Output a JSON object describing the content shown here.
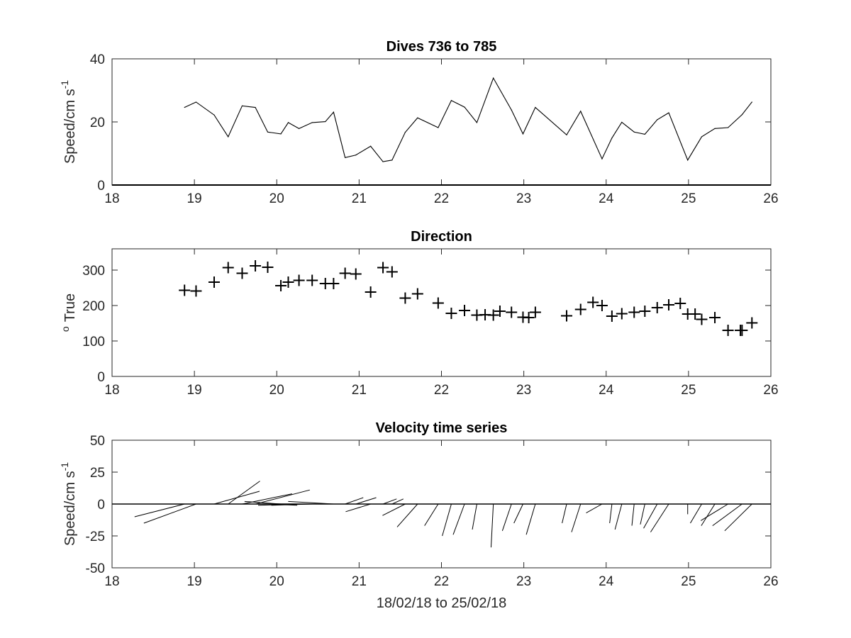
{
  "chart_data": [
    {
      "type": "line",
      "title": "Dives 736 to 785",
      "ylabel_main": "Speed/cm s",
      "ylabel_sup": "-1",
      "xlim": [
        18,
        26
      ],
      "ylim": [
        0,
        40
      ],
      "xticks": [
        "18",
        "19",
        "20",
        "21",
        "22",
        "23",
        "24",
        "25",
        "26"
      ],
      "yticks": [
        "0",
        "20",
        "40"
      ],
      "ytick_values": [
        0,
        20,
        40
      ],
      "color": "#000000",
      "x": [
        18.88,
        19.02,
        19.24,
        19.41,
        19.58,
        19.74,
        19.89,
        20.05,
        20.14,
        20.27,
        20.43,
        20.59,
        20.69,
        20.83,
        20.96,
        21.14,
        21.29,
        21.4,
        21.56,
        21.71,
        21.96,
        22.12,
        22.28,
        22.43,
        22.63,
        22.85,
        22.99,
        23.14,
        23.52,
        23.69,
        23.95,
        24.07,
        24.19,
        24.34,
        24.47,
        24.62,
        24.76,
        24.99,
        25.16,
        25.32,
        25.48,
        25.65,
        25.77
      ],
      "y": [
        24.6,
        26.3,
        22.2,
        15.3,
        25.1,
        24.6,
        16.8,
        16.2,
        19.8,
        17.9,
        19.8,
        20.1,
        23.1,
        8.7,
        9.5,
        12.3,
        7.4,
        7.9,
        16.7,
        21.3,
        18.2,
        26.8,
        24.7,
        19.8,
        33.9,
        23.8,
        16.2,
        24.6,
        15.9,
        23.4,
        8.3,
        14.9,
        19.9,
        16.8,
        16.1,
        20.7,
        22.9,
        7.9,
        15.3,
        17.9,
        18.2,
        22.3,
        26.3
      ]
    },
    {
      "type": "scatter",
      "title": "Direction",
      "ylabel_main": "True",
      "ylabel_sup": "o",
      "xlim": [
        18,
        26
      ],
      "ylim": [
        0,
        360
      ],
      "xticks": [
        "18",
        "19",
        "20",
        "21",
        "22",
        "23",
        "24",
        "25",
        "26"
      ],
      "yticks": [
        "0",
        "100",
        "200",
        "300"
      ],
      "ytick_values": [
        0,
        100,
        200,
        300
      ],
      "marker": "+",
      "color": "#000000",
      "x": [
        18.88,
        19.02,
        19.24,
        19.41,
        19.58,
        19.74,
        19.89,
        20.05,
        20.14,
        20.27,
        20.43,
        20.59,
        20.69,
        20.83,
        20.96,
        21.14,
        21.29,
        21.4,
        21.56,
        21.71,
        21.96,
        22.12,
        22.28,
        22.43,
        22.63,
        22.85,
        22.99,
        23.14,
        23.52,
        23.69,
        23.95,
        24.07,
        24.19,
        24.34,
        24.47,
        24.62,
        24.76,
        24.99,
        25.16,
        25.32,
        25.48,
        25.65,
        25.77,
        25.08,
        23.84,
        22.53,
        22.71,
        23.06,
        24.9,
        25.63
      ],
      "y": [
        243,
        241,
        266,
        307,
        291,
        312,
        308,
        256,
        266,
        271,
        271,
        262,
        262,
        291,
        289,
        238,
        307,
        295,
        221,
        233,
        207,
        178,
        186,
        173,
        173,
        181,
        167,
        181,
        171,
        189,
        200,
        170,
        177,
        181,
        184,
        194,
        202,
        176,
        161,
        166,
        130,
        130,
        151,
        176,
        209,
        174,
        184,
        166,
        206,
        130
      ]
    },
    {
      "type": "quiver",
      "title": "Velocity time series",
      "ylabel_main": "Speed/cm s",
      "ylabel_sup": "-1",
      "xlabel": "18/02/18 to 25/02/18",
      "xlim": [
        18,
        26
      ],
      "ylim": [
        -50,
        50
      ],
      "xticks": [
        "18",
        "19",
        "20",
        "21",
        "22",
        "23",
        "24",
        "25",
        "26"
      ],
      "yticks": [
        "-50",
        "-25",
        "0",
        "25",
        "50"
      ],
      "ytick_values": [
        -50,
        -25,
        0,
        25,
        50
      ],
      "color": "#000000",
      "x": [
        18.88,
        19.02,
        19.24,
        19.41,
        19.58,
        19.74,
        19.89,
        20.05,
        20.14,
        20.27,
        20.43,
        20.59,
        20.69,
        20.83,
        20.96,
        21.14,
        21.29,
        21.4,
        21.56,
        21.71,
        21.96,
        22.12,
        22.28,
        22.43,
        22.63,
        22.85,
        22.99,
        23.14,
        23.52,
        23.69,
        23.95,
        24.07,
        24.19,
        24.34,
        24.47,
        24.62,
        24.76,
        24.99,
        25.16,
        25.32,
        25.48,
        25.65,
        25.77
      ],
      "u": [
        -22,
        -23,
        20,
        14,
        22,
        24,
        13,
        -16,
        -18,
        -18,
        -18,
        -20,
        -20,
        8,
        9,
        -11,
        6,
        5,
        -10,
        -9,
        -6,
        -4,
        -5,
        -2,
        -1,
        -4,
        -4,
        -4,
        -2,
        -4,
        -7,
        -1,
        -3,
        -1,
        -2,
        -6,
        -8,
        0,
        -5,
        -6,
        -12,
        -13,
        -12
      ],
      "v": [
        -10,
        -15,
        10,
        18,
        8,
        11,
        -1,
        2,
        0,
        -1,
        -1,
        0,
        2,
        5,
        5,
        -6,
        4,
        4,
        -9,
        -18,
        -17,
        -25,
        -24,
        -20,
        -34,
        -21,
        -15,
        -24,
        -15,
        -22,
        -7,
        -15,
        -20,
        -17,
        -16,
        -19,
        -22,
        -8,
        -15,
        -17,
        -13,
        -17,
        -21
      ]
    }
  ]
}
